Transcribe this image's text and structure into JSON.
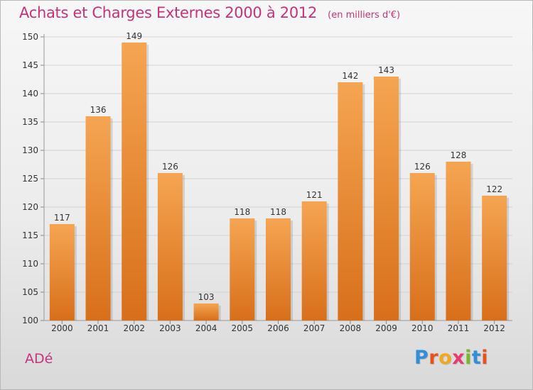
{
  "header": {
    "title": "Achats et Charges Externes 2000 à 2012",
    "unit": "(en milliers d'€)"
  },
  "footer": {
    "commune": "ADé",
    "brand": "Proxiti"
  },
  "colors": {
    "title": "#c8327a",
    "bar_top": "#f5a552",
    "bar_bottom": "#d86f1a",
    "brand_letters": [
      "#2f8fd8",
      "#e8501c",
      "#f2a81c",
      "#e83a6e",
      "#7ab829",
      "#2f8fd8",
      "#e8501c"
    ]
  },
  "chart_data": {
    "type": "bar",
    "categories": [
      "2000",
      "2001",
      "2002",
      "2003",
      "2004",
      "2005",
      "2006",
      "2007",
      "2008",
      "2009",
      "2010",
      "2011",
      "2012"
    ],
    "values": [
      117,
      136,
      149,
      126,
      103,
      118,
      118,
      121,
      142,
      143,
      126,
      128,
      122
    ],
    "ylim": [
      100,
      150
    ],
    "yticks": [
      100,
      105,
      110,
      115,
      120,
      125,
      130,
      135,
      140,
      145,
      150
    ],
    "grid": true,
    "data_labels": true,
    "title": "Achats et Charges Externes 2000 à 2012",
    "xlabel": "",
    "ylabel": ""
  }
}
